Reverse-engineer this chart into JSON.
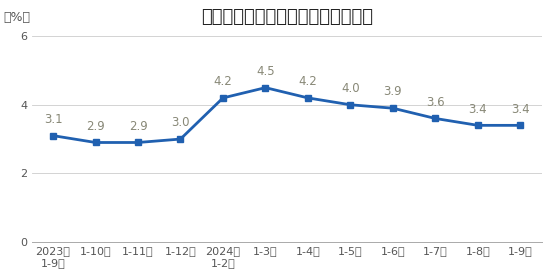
{
  "title": "固定资产投资（不含农户）同比增速",
  "ylabel": "（%）",
  "x_labels": [
    "2023年\n1-9月",
    "1-10月",
    "1-11月",
    "1-12月",
    "2024年\n1-2月",
    "1-3月",
    "1-4月",
    "1-5月",
    "1-6月",
    "1-7月",
    "1-8月",
    "1-9月"
  ],
  "values": [
    3.1,
    2.9,
    2.9,
    3.0,
    4.2,
    4.5,
    4.2,
    4.0,
    3.9,
    3.6,
    3.4,
    3.4
  ],
  "ylim": [
    0,
    6
  ],
  "yticks": [
    0,
    2,
    4,
    6
  ],
  "line_color": "#2060B0",
  "marker_color": "#2060B0",
  "bg_color": "#FFFFFF",
  "plot_bg_color": "#FFFFFF",
  "title_fontsize": 13,
  "tick_fontsize": 8,
  "ylabel_fontsize": 9,
  "annotation_fontsize": 8.5,
  "annotation_color": "#888877"
}
